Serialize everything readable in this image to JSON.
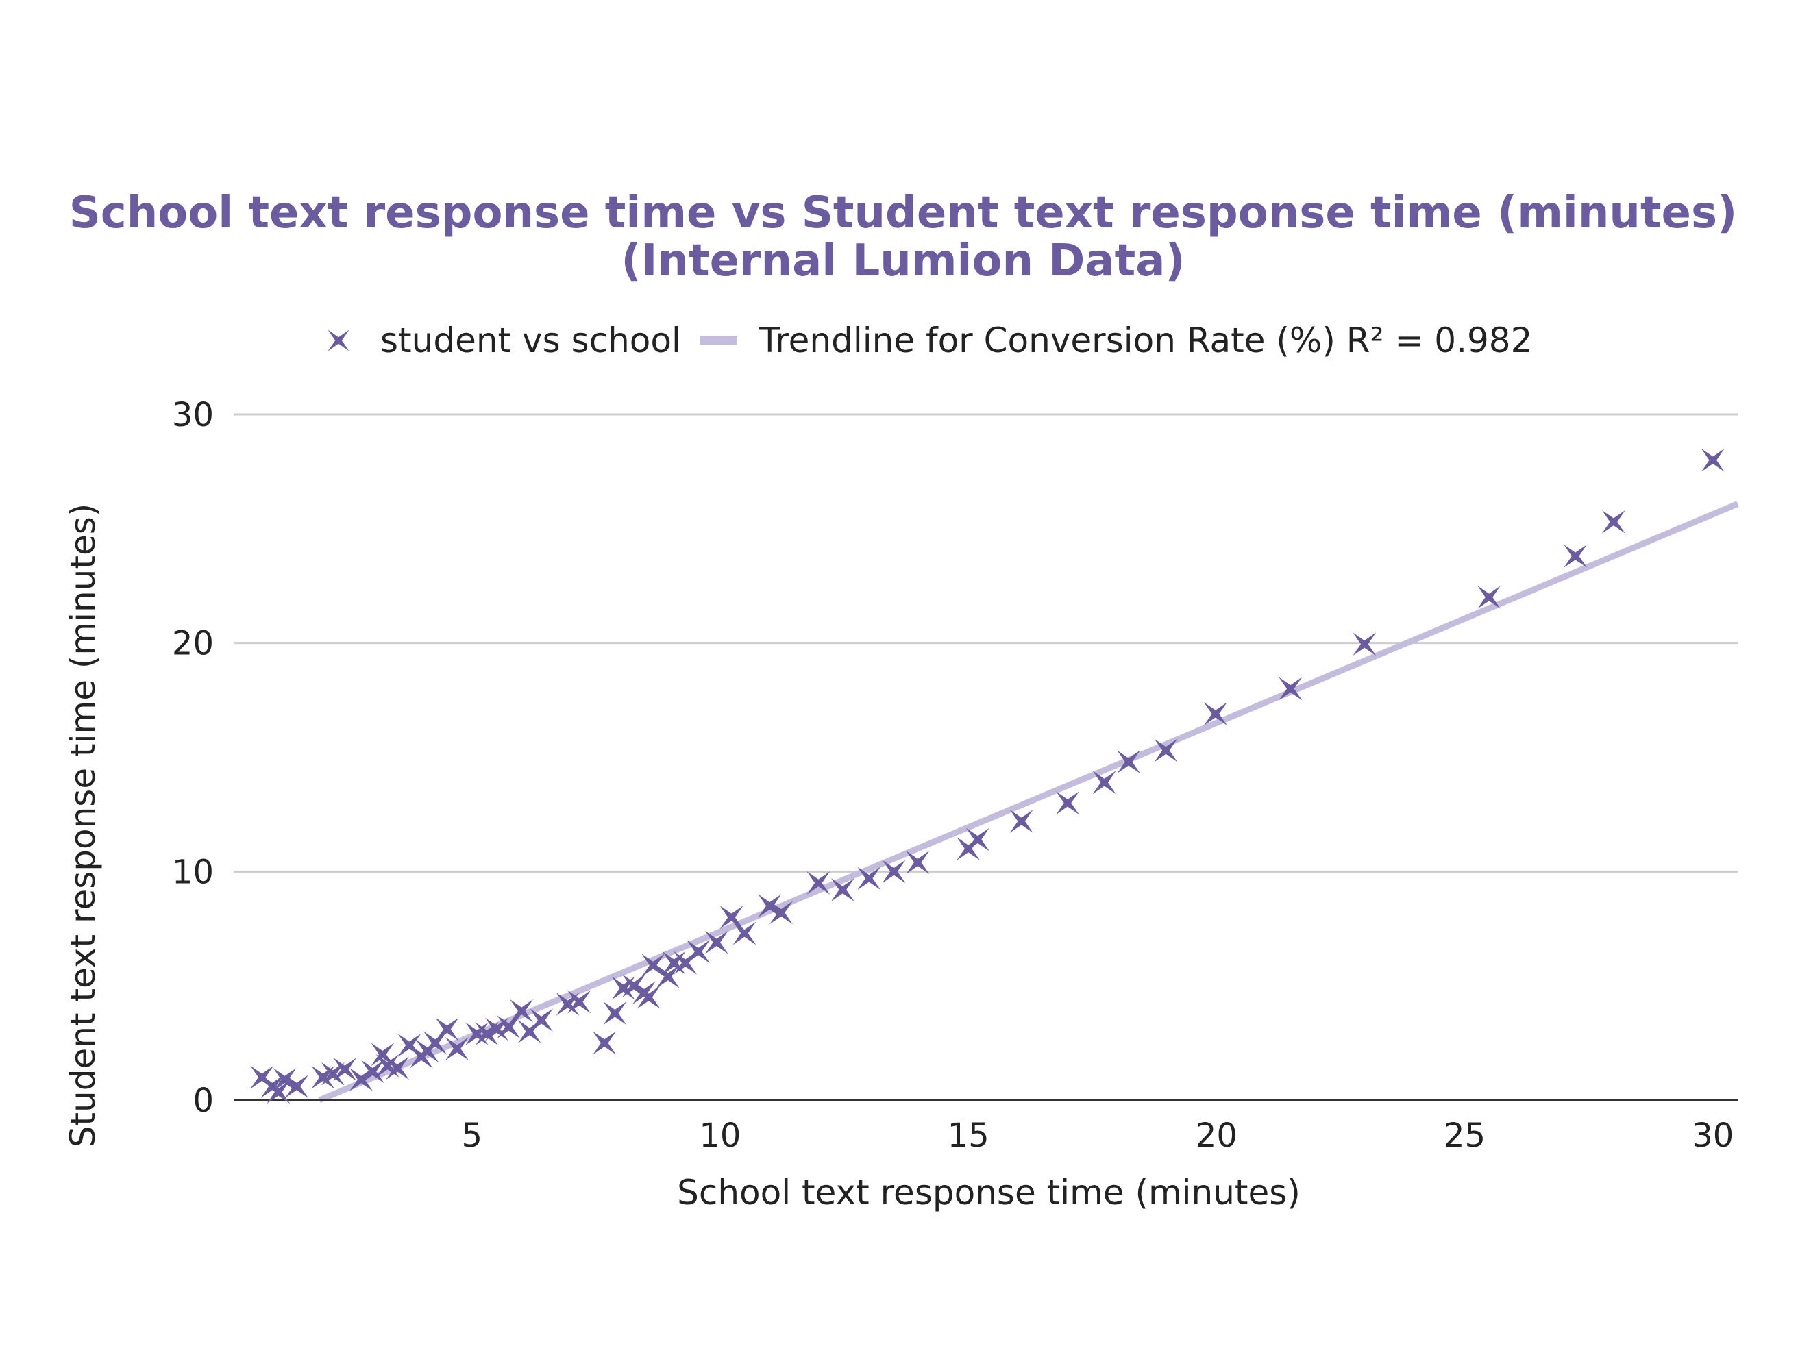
{
  "chart_data": {
    "type": "scatter",
    "title": "School text response time vs Student text response time (minutes)",
    "subtitle": "(Internal Lumion Data)",
    "xlabel": "School text response time (minutes)",
    "ylabel": "Student text response time (minutes)",
    "xlim": [
      0.2,
      30.5
    ],
    "ylim": [
      0,
      30
    ],
    "xticks": [
      "5",
      "10",
      "15",
      "20",
      "25",
      "30"
    ],
    "xtick_values": [
      5,
      10,
      15,
      20,
      25,
      30
    ],
    "yticks": [
      "0",
      "10",
      "20",
      "30"
    ],
    "ytick_values": [
      0,
      10,
      20,
      30
    ],
    "grid": "horizontal",
    "legend_position": "top",
    "colors": {
      "title": "#6b5b9f",
      "marker": "#6b5b9f",
      "trendline": "#c4bcdc",
      "grid": "#cccccc",
      "axis": "#333333"
    },
    "series": [
      {
        "name": "student vs school",
        "marker": "four-point-star",
        "points": [
          [
            0.77,
            1.0
          ],
          [
            0.98,
            0.6
          ],
          [
            1.1,
            0.35
          ],
          [
            1.23,
            0.9
          ],
          [
            1.47,
            0.6
          ],
          [
            2.0,
            1.0
          ],
          [
            2.2,
            1.15
          ],
          [
            2.44,
            1.35
          ],
          [
            2.77,
            0.9
          ],
          [
            3.0,
            1.25
          ],
          [
            3.2,
            2.0
          ],
          [
            3.3,
            1.5
          ],
          [
            3.5,
            1.4
          ],
          [
            3.74,
            2.4
          ],
          [
            3.98,
            1.9
          ],
          [
            4.1,
            2.15
          ],
          [
            4.26,
            2.5
          ],
          [
            4.5,
            3.1
          ],
          [
            4.7,
            2.25
          ],
          [
            5.1,
            2.9
          ],
          [
            5.3,
            2.9
          ],
          [
            5.5,
            3.1
          ],
          [
            5.74,
            3.2
          ],
          [
            6.0,
            3.9
          ],
          [
            6.16,
            3.0
          ],
          [
            6.4,
            3.5
          ],
          [
            6.93,
            4.2
          ],
          [
            7.16,
            4.3
          ],
          [
            7.67,
            2.5
          ],
          [
            7.88,
            3.8
          ],
          [
            8.05,
            4.9
          ],
          [
            8.26,
            5.0
          ],
          [
            8.47,
            4.7
          ],
          [
            8.56,
            4.5
          ],
          [
            8.65,
            5.9
          ],
          [
            8.95,
            5.4
          ],
          [
            9.07,
            6.0
          ],
          [
            9.3,
            6.0
          ],
          [
            9.56,
            6.5
          ],
          [
            9.93,
            6.9
          ],
          [
            10.23,
            8.0
          ],
          [
            10.49,
            7.3
          ],
          [
            11.0,
            8.5
          ],
          [
            11.23,
            8.2
          ],
          [
            11.98,
            9.5
          ],
          [
            12.47,
            9.2
          ],
          [
            13.0,
            9.7
          ],
          [
            13.5,
            10.0
          ],
          [
            13.98,
            10.4
          ],
          [
            15.0,
            11.0
          ],
          [
            15.19,
            11.4
          ],
          [
            16.07,
            12.2
          ],
          [
            17.0,
            13.0
          ],
          [
            17.74,
            13.9
          ],
          [
            18.23,
            14.8
          ],
          [
            18.98,
            15.3
          ],
          [
            19.98,
            16.9
          ],
          [
            21.49,
            18.0
          ],
          [
            22.98,
            19.95
          ],
          [
            25.49,
            22.0
          ],
          [
            27.23,
            23.8
          ],
          [
            28.0,
            25.3
          ],
          [
            30.0,
            28.0
          ]
        ]
      }
    ],
    "trendline": {
      "name": "Trendline for Conversion Rate (%) R² = 0.982",
      "type": "linear",
      "slope": 0.913,
      "intercept": -1.76,
      "r_squared": 0.982
    }
  }
}
